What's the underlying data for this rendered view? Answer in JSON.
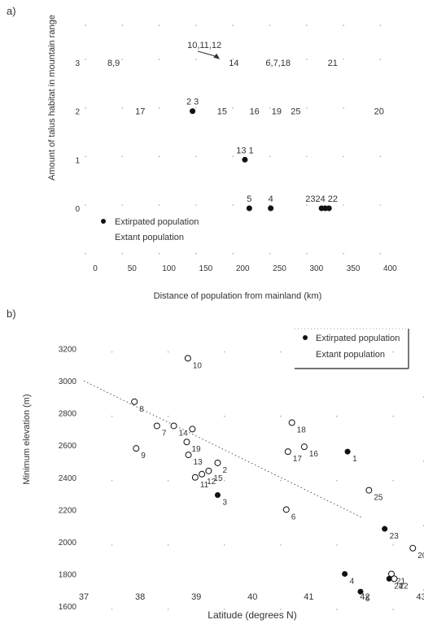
{
  "chart_data": [
    {
      "type": "scatter",
      "panel_label": "a)",
      "xlabel": "Distance of population from mainland (km)",
      "ylabel": "Amount of talus habitat in mountain range",
      "xlim": [
        0,
        400
      ],
      "ylim": [
        0,
        3
      ],
      "x_ticks": [
        "0",
        "50",
        "100",
        "150",
        "200",
        "250",
        "300",
        "350",
        "400"
      ],
      "y_ticks": [
        "0",
        "1",
        "2",
        "3"
      ],
      "legend": {
        "position": "bottom-left",
        "entries": [
          {
            "label": "Extirpated population",
            "marker": "filled"
          },
          {
            "label": "Extant population",
            "marker": "none"
          }
        ]
      },
      "extirpated": [
        {
          "label": "2 3",
          "x": 132,
          "y": 2
        },
        {
          "label": "13 1",
          "x": 203,
          "y": 1
        },
        {
          "label": "5",
          "x": 209,
          "y": 0
        },
        {
          "label": "4",
          "x": 238,
          "y": 0
        },
        {
          "label": "2324 22",
          "x": 307,
          "y": 0
        },
        {
          "label": "",
          "x": 312,
          "y": 0
        },
        {
          "label": "",
          "x": 317,
          "y": 0
        }
      ],
      "extant_labels": [
        {
          "label": "8,9",
          "x": 25,
          "y": 3
        },
        {
          "label": "14",
          "x": 188,
          "y": 3
        },
        {
          "label": "6,7,18",
          "x": 248,
          "y": 3
        },
        {
          "label": "21",
          "x": 322,
          "y": 3
        },
        {
          "label": "17",
          "x": 61,
          "y": 2
        },
        {
          "label": "15",
          "x": 172,
          "y": 2
        },
        {
          "label": "16",
          "x": 216,
          "y": 2
        },
        {
          "label": "19",
          "x": 246,
          "y": 2
        },
        {
          "label": "25",
          "x": 272,
          "y": 2
        },
        {
          "label": "20",
          "x": 385,
          "y": 2
        }
      ],
      "annotations": [
        {
          "text": "10,11,12",
          "x": 148,
          "y": 3.3,
          "arrow_to": [
            169,
            3.07
          ]
        }
      ]
    },
    {
      "type": "scatter",
      "panel_label": "b)",
      "xlabel": "Latitude (degrees N)",
      "ylabel": "Minimum elevation (m)",
      "xlim": [
        37,
        43
      ],
      "ylim": [
        1600,
        3200
      ],
      "x_ticks": [
        "37",
        "38",
        "39",
        "40",
        "41",
        "42",
        "43"
      ],
      "y_ticks": [
        "1600",
        "1800",
        "2000",
        "2200",
        "2400",
        "2600",
        "2800",
        "3000",
        "3200"
      ],
      "legend": {
        "position": "top-right",
        "entries": [
          {
            "label": "Extirpated population",
            "marker": "filled"
          },
          {
            "label": "Extant population",
            "marker": "open"
          }
        ]
      },
      "trendline": {
        "x": [
          37,
          41.95
        ],
        "y": [
          3000,
          2150
        ]
      },
      "series": [
        {
          "name": "Extirpated population",
          "points": [
            {
              "label": "1",
              "x": 41.69,
              "y": 2560
            },
            {
              "label": "3",
              "x": 39.38,
              "y": 2290
            },
            {
              "label": "23",
              "x": 42.35,
              "y": 2080
            },
            {
              "label": "4",
              "x": 41.64,
              "y": 1800
            },
            {
              "label": "24",
              "x": 42.43,
              "y": 1770
            },
            {
              "label": "5",
              "x": 41.92,
              "y": 1690
            }
          ]
        },
        {
          "name": "Extant population",
          "points": [
            {
              "label": "10",
              "x": 38.85,
              "y": 3140
            },
            {
              "label": "8",
              "x": 37.9,
              "y": 2870
            },
            {
              "label": "7",
              "x": 38.3,
              "y": 2720
            },
            {
              "label": "14",
              "x": 38.6,
              "y": 2720
            },
            {
              "label": "",
              "x": 38.93,
              "y": 2700
            },
            {
              "label": "19",
              "x": 38.83,
              "y": 2620
            },
            {
              "label": "13",
              "x": 38.86,
              "y": 2540
            },
            {
              "label": "9",
              "x": 37.93,
              "y": 2580
            },
            {
              "label": "11",
              "x": 38.98,
              "y": 2400
            },
            {
              "label": "12",
              "x": 39.1,
              "y": 2420
            },
            {
              "label": "15",
              "x": 39.22,
              "y": 2440
            },
            {
              "label": "2",
              "x": 39.38,
              "y": 2490
            },
            {
              "label": "18",
              "x": 40.7,
              "y": 2740
            },
            {
              "label": "17",
              "x": 40.63,
              "y": 2560
            },
            {
              "label": "16",
              "x": 40.92,
              "y": 2590
            },
            {
              "label": "6",
              "x": 40.6,
              "y": 2200
            },
            {
              "label": "25",
              "x": 42.07,
              "y": 2320
            },
            {
              "label": "20",
              "x": 42.85,
              "y": 1960
            },
            {
              "label": "21",
              "x": 42.47,
              "y": 1800
            },
            {
              "label": "22",
              "x": 42.52,
              "y": 1770
            }
          ]
        }
      ]
    }
  ]
}
